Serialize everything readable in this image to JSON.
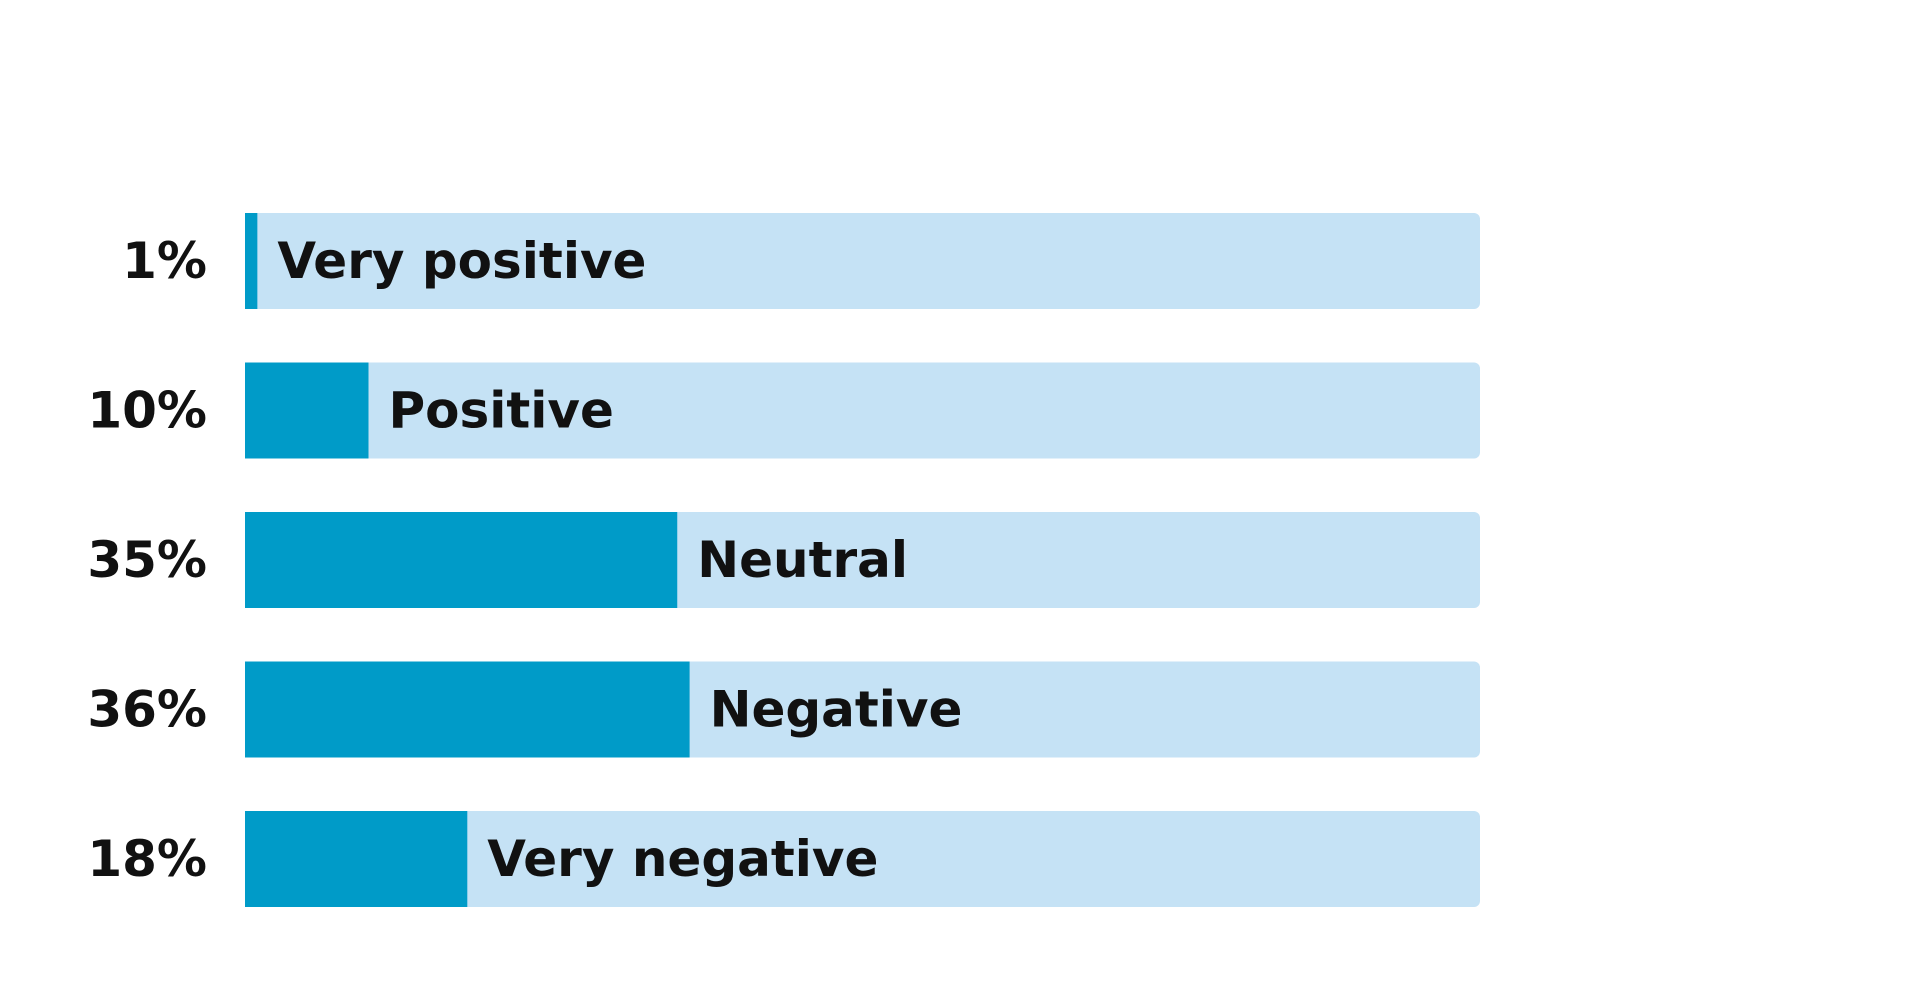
{
  "chart_data": {
    "type": "bar",
    "orientation": "horizontal",
    "categories": [
      "Very positive",
      "Positive",
      "Neutral",
      "Negative",
      "Very negative"
    ],
    "values": [
      1,
      10,
      35,
      36,
      18
    ],
    "value_labels": [
      "1%",
      "10%",
      "35%",
      "36%",
      "18%"
    ],
    "xlim": [
      0,
      100
    ],
    "unit": "%",
    "grid": false,
    "legend": "none",
    "colors": {
      "bar": "#009bc8",
      "track": "#c5e2f5",
      "text": "#111111"
    }
  }
}
